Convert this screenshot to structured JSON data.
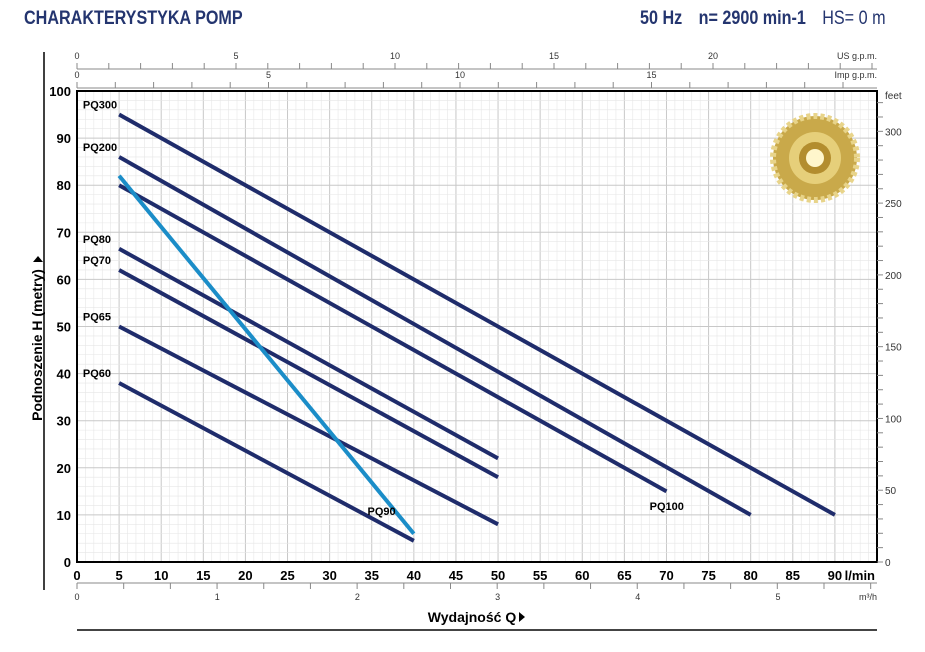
{
  "header": {
    "title": "CHARAKTERYSTYKA POMP",
    "freq": "50 Hz",
    "speed": "n= 2900 min-1",
    "hs": "HS= 0 m"
  },
  "chart_data": {
    "type": "line",
    "xlabel": "Wydajność Q",
    "ylabel": "Podnoszenie H (metry)",
    "xunit": "l/min",
    "xlim": [
      0,
      95
    ],
    "ylim": [
      0,
      100
    ],
    "xticks": [
      0,
      5,
      10,
      15,
      20,
      25,
      30,
      35,
      40,
      45,
      50,
      55,
      60,
      65,
      70,
      75,
      80,
      85,
      90
    ],
    "yticks": [
      0,
      10,
      20,
      30,
      40,
      50,
      60,
      70,
      80,
      90,
      100
    ],
    "grid": true,
    "secondary_axes": {
      "us_gpm": {
        "label": "US g.p.m.",
        "ticks": [
          0,
          5,
          10,
          15,
          20
        ]
      },
      "imp_gpm": {
        "label": "Imp g.p.m.",
        "ticks": [
          0,
          5,
          10,
          15
        ]
      },
      "m3h": {
        "label": "m³/h",
        "ticks": [
          0,
          1,
          2,
          3,
          4,
          5
        ]
      },
      "feet": {
        "label": "feet",
        "ticks": [
          0,
          50,
          100,
          150,
          200,
          250,
          300
        ]
      }
    },
    "series": [
      {
        "name": "PQ300",
        "color": "#1f2c6b",
        "x": [
          5,
          90
        ],
        "y": [
          95,
          10
        ]
      },
      {
        "name": "PQ200",
        "color": "#1f2c6b",
        "x": [
          5,
          80
        ],
        "y": [
          86,
          10
        ]
      },
      {
        "name": "PQ100",
        "color": "#1f2c6b",
        "x": [
          5,
          70
        ],
        "y": [
          80,
          15
        ]
      },
      {
        "name": "PQ80",
        "color": "#1f2c6b",
        "x": [
          5,
          50
        ],
        "y": [
          66.5,
          22
        ]
      },
      {
        "name": "PQ70",
        "color": "#1f2c6b",
        "x": [
          5,
          50
        ],
        "y": [
          62,
          18
        ]
      },
      {
        "name": "PQ65",
        "color": "#1f2c6b",
        "x": [
          5,
          50
        ],
        "y": [
          50,
          8
        ]
      },
      {
        "name": "PQ60",
        "color": "#1f2c6b",
        "x": [
          5,
          40
        ],
        "y": [
          38,
          4.5
        ]
      },
      {
        "name": "PQ90",
        "color": "#1b8dc8",
        "x": [
          5,
          40
        ],
        "y": [
          82,
          6
        ]
      }
    ]
  }
}
